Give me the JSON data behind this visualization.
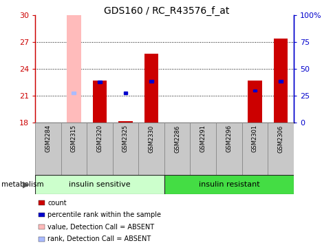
{
  "title": "GDS160 / RC_R43576_f_at",
  "samples": [
    "GSM2284",
    "GSM2315",
    "GSM2320",
    "GSM2325",
    "GSM2330",
    "GSM2286",
    "GSM2291",
    "GSM2296",
    "GSM2301",
    "GSM2306"
  ],
  "ylim": [
    18,
    30
  ],
  "yticks": [
    18,
    21,
    24,
    27,
    30
  ],
  "y2lim": [
    0,
    100
  ],
  "y2ticks": [
    0,
    25,
    50,
    75,
    100
  ],
  "y2ticklabels": [
    "0",
    "25",
    "50",
    "75",
    "100%"
  ],
  "bar_values": [
    0,
    30,
    22.7,
    18.15,
    25.7,
    0,
    0,
    0,
    22.7,
    27.4
  ],
  "bar_colors": [
    "none",
    "#ffbbbb",
    "#cc0000",
    "#cc0000",
    "#cc0000",
    "none",
    "none",
    "none",
    "#cc0000",
    "#cc0000"
  ],
  "bar_absent": [
    false,
    true,
    false,
    false,
    false,
    false,
    false,
    false,
    false,
    false
  ],
  "rank_values": [
    null,
    21.3,
    22.5,
    21.3,
    22.6,
    null,
    null,
    null,
    21.55,
    22.6
  ],
  "rank_absent": [
    false,
    true,
    false,
    false,
    false,
    false,
    false,
    false,
    false,
    false
  ],
  "rank_colors_normal": "#0000cc",
  "rank_colors_absent": "#aabbff",
  "group1_label": "insulin sensitive",
  "group2_label": "insulin resistant",
  "group1_color": "#ccffcc",
  "group2_color": "#44dd44",
  "group1_indices": [
    0,
    1,
    2,
    3,
    4
  ],
  "group2_indices": [
    5,
    6,
    7,
    8,
    9
  ],
  "metabolism_label": "metabolism",
  "legend_items": [
    {
      "color": "#cc0000",
      "label": "count"
    },
    {
      "color": "#0000cc",
      "label": "percentile rank within the sample"
    },
    {
      "color": "#ffbbbb",
      "label": "value, Detection Call = ABSENT"
    },
    {
      "color": "#aabbff",
      "label": "rank, Detection Call = ABSENT"
    }
  ],
  "bar_width": 0.55,
  "left_tick_color": "#cc0000",
  "right_tick_color": "#0000cc",
  "xlabel_bg": "#c8c8c8",
  "xlabel_border": "#888888"
}
